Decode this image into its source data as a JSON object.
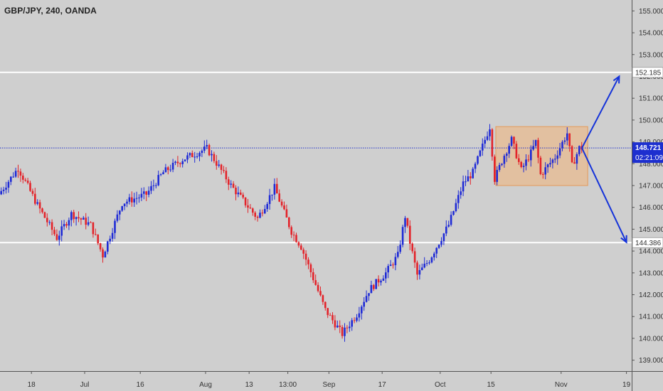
{
  "header": {
    "symbol_label": "GBP/JPY, 240, OANDA"
  },
  "colors": {
    "background": "#cfcfcf",
    "up_candle": "#1f2bd6",
    "down_candle": "#e3232a",
    "level_line": "#ffffff",
    "current_price_line": "#2233cc",
    "current_price_tag": "#1d2fcf",
    "range_box": "#f3b57a",
    "arrow": "#1533d9"
  },
  "chart_data": {
    "type": "candlestick",
    "timeframe": "240",
    "source": "OANDA",
    "ylim": [
      138.5,
      155.5
    ],
    "y_ticks": [
      "139.000",
      "140.000",
      "141.000",
      "142.000",
      "143.000",
      "144.000",
      "145.000",
      "146.000",
      "147.000",
      "148.000",
      "149.000",
      "150.000",
      "151.000",
      "152.000",
      "153.000",
      "154.000",
      "155.000"
    ],
    "x_ticks": [
      "18",
      "Jul",
      "16",
      "Aug",
      "13",
      "13:00",
      "Sep",
      "17",
      "Oct",
      "15",
      "Nov",
      "19"
    ],
    "horizontal_levels": [
      {
        "price": 152.185,
        "label": "152.185"
      },
      {
        "price": 144.386,
        "label": "144.386"
      }
    ],
    "current_price": {
      "price": 148.721,
      "label": "148.721",
      "countdown": "02:21:09"
    },
    "price_path": [
      [
        0,
        146.6
      ],
      [
        8,
        147.8
      ],
      [
        16,
        146.1
      ],
      [
        24,
        144.6
      ],
      [
        30,
        145.7
      ],
      [
        38,
        145.2
      ],
      [
        43,
        143.8
      ],
      [
        51,
        146.2
      ],
      [
        61,
        146.6
      ],
      [
        68,
        147.6
      ],
      [
        76,
        148.2
      ],
      [
        86,
        148.7
      ],
      [
        89,
        148.2
      ],
      [
        96,
        147.0
      ],
      [
        107,
        145.5
      ],
      [
        114,
        146.9
      ],
      [
        121,
        144.9
      ],
      [
        125,
        144.2
      ],
      [
        135,
        141.3
      ],
      [
        142,
        140.2
      ],
      [
        148,
        141.1
      ],
      [
        153,
        142.2
      ],
      [
        160,
        143.0
      ],
      [
        165,
        143.8
      ],
      [
        168,
        145.6
      ],
      [
        170,
        144.4
      ],
      [
        173,
        142.9
      ],
      [
        178,
        143.6
      ],
      [
        186,
        145.2
      ],
      [
        192,
        147.1
      ],
      [
        196,
        147.6
      ],
      [
        200,
        148.8
      ],
      [
        203,
        149.7
      ],
      [
        205,
        147.3
      ],
      [
        209,
        148.4
      ],
      [
        212,
        149.1
      ],
      [
        216,
        147.7
      ],
      [
        220,
        148.5
      ],
      [
        222,
        149.0
      ],
      [
        224,
        147.5
      ],
      [
        230,
        148.3
      ],
      [
        235,
        149.4
      ],
      [
        237,
        147.9
      ],
      [
        240,
        148.721
      ]
    ],
    "range_box": {
      "x_start": 205,
      "x_end": 243,
      "price_top": 149.7,
      "price_bottom": 147.0
    },
    "projection_arrows": [
      {
        "from": [
          240,
          148.721
        ],
        "to": [
          256,
          152.0
        ]
      },
      {
        "from": [
          240,
          148.721
        ],
        "to": [
          259,
          144.4
        ]
      }
    ]
  }
}
